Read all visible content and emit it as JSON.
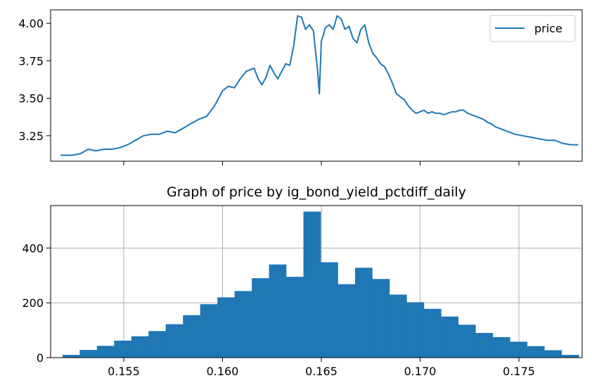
{
  "chart_data": [
    {
      "type": "line",
      "title": "",
      "xlabel": "",
      "ylabel": "",
      "xlim": [
        0.1513,
        0.1782
      ],
      "ylim": [
        3.08,
        4.09
      ],
      "yticks": [
        3.25,
        3.5,
        3.75,
        4.0
      ],
      "ytick_labels": [
        "3.25",
        "3.50",
        "3.75",
        "4.00"
      ],
      "xticks": [
        0.155,
        0.16,
        0.165,
        0.17,
        0.175
      ],
      "show_xtick_labels": false,
      "grid": false,
      "legend": {
        "location": "top-right",
        "entries": [
          "price"
        ]
      },
      "series": [
        {
          "name": "price",
          "color": "#1f77b4",
          "x": [
            0.1518,
            0.1524,
            0.1528,
            0.1532,
            0.1536,
            0.154,
            0.1544,
            0.1548,
            0.1552,
            0.1556,
            0.156,
            0.1564,
            0.1568,
            0.1572,
            0.1576,
            0.158,
            0.1584,
            0.1588,
            0.1592,
            0.1596,
            0.16,
            0.1603,
            0.1606,
            0.1609,
            0.1612,
            0.1614,
            0.1616,
            0.1618,
            0.162,
            0.1622,
            0.1624,
            0.1626,
            0.1628,
            0.163,
            0.1632,
            0.1634,
            0.1636,
            0.1638,
            0.164,
            0.1642,
            0.1644,
            0.1646,
            0.1648,
            0.1649,
            0.165,
            0.1651,
            0.1652,
            0.1654,
            0.1656,
            0.1658,
            0.166,
            0.1662,
            0.1664,
            0.1666,
            0.1668,
            0.167,
            0.1672,
            0.1674,
            0.1676,
            0.1678,
            0.168,
            0.1682,
            0.1684,
            0.1686,
            0.1688,
            0.169,
            0.1692,
            0.1694,
            0.1696,
            0.1698,
            0.17,
            0.1702,
            0.1704,
            0.1706,
            0.1708,
            0.171,
            0.1712,
            0.1714,
            0.1716,
            0.1718,
            0.172,
            0.1722,
            0.1724,
            0.1726,
            0.1728,
            0.173,
            0.1732,
            0.1734,
            0.1736,
            0.1738,
            0.174,
            0.1744,
            0.1748,
            0.1752,
            0.1756,
            0.176,
            0.1764,
            0.1768,
            0.1772,
            0.1776,
            0.178
          ],
          "y": [
            3.12,
            3.12,
            3.13,
            3.16,
            3.15,
            3.16,
            3.16,
            3.17,
            3.19,
            3.22,
            3.25,
            3.26,
            3.26,
            3.28,
            3.27,
            3.3,
            3.33,
            3.36,
            3.38,
            3.45,
            3.55,
            3.58,
            3.57,
            3.63,
            3.68,
            3.69,
            3.7,
            3.63,
            3.59,
            3.64,
            3.72,
            3.67,
            3.63,
            3.68,
            3.73,
            3.72,
            3.85,
            4.05,
            4.04,
            3.96,
            3.99,
            3.95,
            3.7,
            3.53,
            3.88,
            3.92,
            3.97,
            3.99,
            3.96,
            4.05,
            4.03,
            3.96,
            3.98,
            3.9,
            3.87,
            3.96,
            3.99,
            3.87,
            3.8,
            3.77,
            3.73,
            3.71,
            3.66,
            3.6,
            3.53,
            3.51,
            3.49,
            3.45,
            3.42,
            3.4,
            3.41,
            3.42,
            3.4,
            3.41,
            3.4,
            3.4,
            3.39,
            3.4,
            3.41,
            3.41,
            3.42,
            3.42,
            3.4,
            3.39,
            3.38,
            3.37,
            3.36,
            3.34,
            3.33,
            3.31,
            3.3,
            3.28,
            3.26,
            3.25,
            3.24,
            3.23,
            3.22,
            3.22,
            3.2,
            3.19,
            3.19
          ]
        }
      ]
    },
    {
      "type": "bar",
      "title": "Graph of price by ig_bond_yield_pctdiff_daily",
      "xlabel": "",
      "ylabel": "",
      "xlim": [
        0.1513,
        0.1782
      ],
      "ylim": [
        0,
        555
      ],
      "xticks": [
        0.155,
        0.16,
        0.165,
        0.17,
        0.175
      ],
      "xtick_labels": [
        "0.155",
        "0.160",
        "0.165",
        "0.170",
        "0.175"
      ],
      "yticks": [
        0,
        200,
        400
      ],
      "ytick_labels": [
        "0",
        "200",
        "400"
      ],
      "grid": true,
      "color": "#1f77b4",
      "bin_start": 0.1519,
      "bin_width": 0.000871,
      "values": [
        10,
        28,
        43,
        62,
        78,
        97,
        122,
        155,
        195,
        220,
        243,
        290,
        340,
        295,
        533,
        348,
        268,
        328,
        287,
        230,
        202,
        178,
        150,
        120,
        90,
        75,
        58,
        42,
        27,
        10
      ]
    }
  ]
}
